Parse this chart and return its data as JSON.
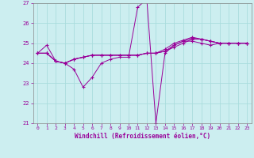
{
  "xlabel": "Windchill (Refroidissement éolien,°C)",
  "background_color": "#cceef0",
  "line_color": "#990099",
  "grid_color": "#aadddd",
  "xlim": [
    -0.5,
    23.5
  ],
  "ylim": [
    21,
    27
  ],
  "yticks": [
    21,
    22,
    23,
    24,
    25,
    26,
    27
  ],
  "xticks": [
    0,
    1,
    2,
    3,
    4,
    5,
    6,
    7,
    8,
    9,
    10,
    11,
    12,
    13,
    14,
    15,
    16,
    17,
    18,
    19,
    20,
    21,
    22,
    23
  ],
  "series": [
    [
      24.5,
      24.9,
      24.1,
      24.0,
      23.7,
      22.8,
      23.3,
      24.0,
      24.2,
      24.3,
      24.3,
      26.8,
      27.2,
      21.0,
      24.5,
      24.9,
      25.1,
      25.1,
      25.0,
      24.9,
      25.0,
      25.0,
      25.0,
      25.0
    ],
    [
      24.5,
      24.5,
      24.1,
      24.0,
      24.2,
      24.3,
      24.4,
      24.4,
      24.4,
      24.4,
      24.4,
      24.4,
      24.5,
      24.5,
      24.6,
      24.8,
      25.0,
      25.2,
      25.2,
      25.1,
      25.0,
      25.0,
      25.0,
      25.0
    ],
    [
      24.5,
      24.5,
      24.1,
      24.0,
      24.2,
      24.3,
      24.4,
      24.4,
      24.4,
      24.4,
      24.4,
      24.4,
      24.5,
      24.5,
      24.6,
      24.9,
      25.1,
      25.25,
      25.2,
      25.1,
      25.0,
      25.0,
      25.0,
      25.0
    ],
    [
      24.5,
      24.5,
      24.1,
      24.0,
      24.2,
      24.3,
      24.4,
      24.4,
      24.4,
      24.4,
      24.4,
      24.4,
      24.5,
      24.5,
      24.7,
      25.0,
      25.15,
      25.3,
      25.2,
      25.1,
      25.0,
      25.0,
      25.0,
      25.0
    ]
  ]
}
